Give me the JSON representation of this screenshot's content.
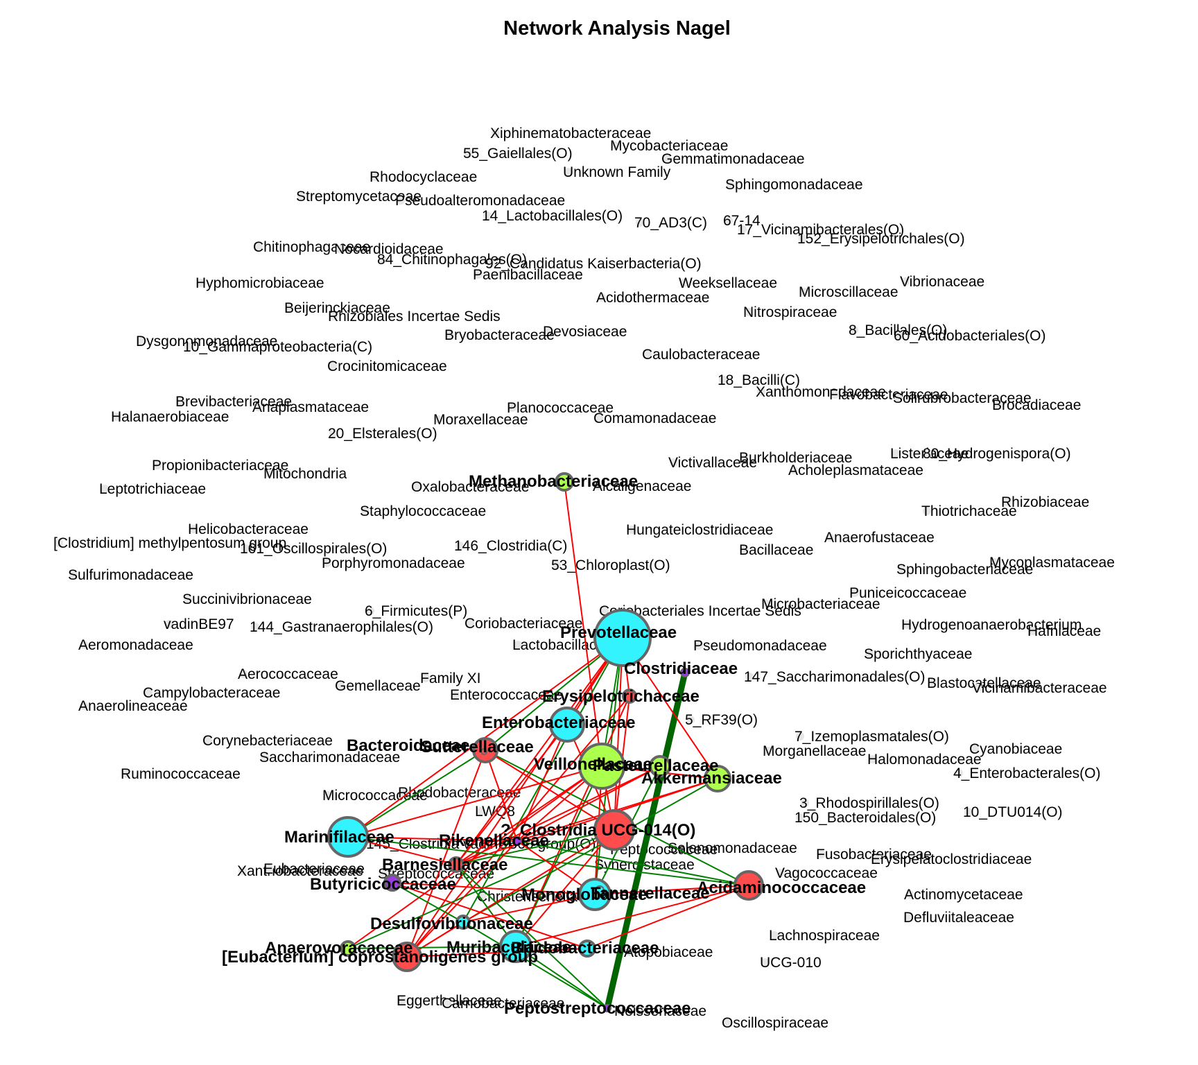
{
  "title": "Network Analysis Nagel",
  "colors": {
    "positive_edge": "#008000",
    "strong_positive_edge": "#006400",
    "negative_edge": "#ff0000",
    "isolated_node": "#e6e6e6",
    "cyan": "#33f3ff",
    "red": "#ff4d4d",
    "lime": "#adff4d",
    "purple": "#9a3ee0",
    "node_stroke": "#666666"
  },
  "hub_nodes": [
    {
      "id": "prev",
      "label": "Prevotellaceae",
      "color": "cyan"
    },
    {
      "id": "clost",
      "label": "Clostridiaceae",
      "color": "purple"
    },
    {
      "id": "erys",
      "label": "Erysipelotrichaceae",
      "color": "red"
    },
    {
      "id": "entero",
      "label": "Enterobacteriaceae",
      "color": "cyan"
    },
    {
      "id": "bact",
      "label": "Bacteroidaceae",
      "color": "red"
    },
    {
      "id": "sutt",
      "label": "Sutterellaceae",
      "color": "red"
    },
    {
      "id": "veil",
      "label": "Veillonellaceae",
      "color": "lime"
    },
    {
      "id": "pasteur",
      "label": "Pasteurellaceae",
      "color": "lime"
    },
    {
      "id": "akk",
      "label": "Akkermansiaceae",
      "color": "lime"
    },
    {
      "id": "methano",
      "label": "Methanobacteriaceae",
      "color": "lime"
    },
    {
      "id": "marini",
      "label": "Marinifilaceae",
      "color": "cyan"
    },
    {
      "id": "ucg014",
      "label": "?_Clostridia UCG-014(O)",
      "color": "red"
    },
    {
      "id": "riken",
      "label": "Rikenellaceae",
      "color": "purple"
    },
    {
      "id": "barn",
      "label": "Barnesiellaceae",
      "color": "red"
    },
    {
      "id": "butyr",
      "label": "Butyricicoccaceae",
      "color": "purple"
    },
    {
      "id": "monog",
      "label": "Monoglobaceae",
      "color": "cyan"
    },
    {
      "id": "tanner",
      "label": "Tannerellaceae",
      "color": "cyan"
    },
    {
      "id": "acida",
      "label": "Acidaminococcaceae",
      "color": "red"
    },
    {
      "id": "desulfo",
      "label": "Desulfovibrionaceae",
      "color": "cyan"
    },
    {
      "id": "anaerovo",
      "label": "Anaerovoracaceae",
      "color": "lime"
    },
    {
      "id": "eubcop",
      "label": "[Eubacterium] coprostanoligenes group",
      "color": "red"
    },
    {
      "id": "murib",
      "label": "Muribaculaceae",
      "color": "cyan"
    },
    {
      "id": "bifido",
      "label": "Bifidobacteriaceae",
      "color": "cyan"
    },
    {
      "id": "peptostrep",
      "label": "Peptostreptococcaceae",
      "color": "purple"
    }
  ],
  "edges": [
    {
      "from": "clost",
      "to": "peptostrep",
      "sign": "positive",
      "weight": "strong"
    },
    {
      "from": "methano",
      "to": "veil",
      "sign": "negative"
    },
    {
      "from": "prev",
      "to": "erys",
      "sign": "negative"
    },
    {
      "from": "prev",
      "to": "entero",
      "sign": "negative"
    },
    {
      "from": "prev",
      "to": "sutt",
      "sign": "positive"
    },
    {
      "from": "prev",
      "to": "veil",
      "sign": "positive"
    },
    {
      "from": "prev",
      "to": "ucg014",
      "sign": "negative"
    },
    {
      "from": "prev",
      "to": "akk",
      "sign": "negative"
    },
    {
      "from": "prev",
      "to": "marini",
      "sign": "negative"
    },
    {
      "from": "prev",
      "to": "barn",
      "sign": "negative"
    },
    {
      "from": "prev",
      "to": "desulfo",
      "sign": "positive"
    },
    {
      "from": "prev",
      "to": "monog",
      "sign": "positive"
    },
    {
      "from": "prev",
      "to": "eubcop",
      "sign": "negative"
    },
    {
      "from": "erys",
      "to": "ucg014",
      "sign": "negative"
    },
    {
      "from": "erys",
      "to": "murib",
      "sign": "negative"
    },
    {
      "from": "erys",
      "to": "eubcop",
      "sign": "negative"
    },
    {
      "from": "entero",
      "to": "riken",
      "sign": "negative"
    },
    {
      "from": "entero",
      "to": "barn",
      "sign": "negative"
    },
    {
      "from": "entero",
      "to": "ucg014",
      "sign": "negative"
    },
    {
      "from": "sutt",
      "to": "marini",
      "sign": "positive"
    },
    {
      "from": "sutt",
      "to": "acida",
      "sign": "positive"
    },
    {
      "from": "sutt",
      "to": "eubcop",
      "sign": "negative"
    },
    {
      "from": "sutt",
      "to": "riken",
      "sign": "negative"
    },
    {
      "from": "sutt",
      "to": "ucg014",
      "sign": "negative"
    },
    {
      "from": "veil",
      "to": "riken",
      "sign": "negative"
    },
    {
      "from": "veil",
      "to": "marini",
      "sign": "negative"
    },
    {
      "from": "veil",
      "to": "monog",
      "sign": "negative"
    },
    {
      "from": "veil",
      "to": "barn",
      "sign": "negative"
    },
    {
      "from": "veil",
      "to": "ucg014",
      "sign": "negative"
    },
    {
      "from": "veil",
      "to": "murib",
      "sign": "positive"
    },
    {
      "from": "veil",
      "to": "akk",
      "sign": "negative"
    },
    {
      "from": "veil",
      "to": "anaerovo",
      "sign": "negative"
    },
    {
      "from": "pasteur",
      "to": "barn",
      "sign": "negative"
    },
    {
      "from": "pasteur",
      "to": "riken",
      "sign": "negative"
    },
    {
      "from": "pasteur",
      "to": "monog",
      "sign": "positive"
    },
    {
      "from": "akk",
      "to": "barn",
      "sign": "negative"
    },
    {
      "from": "akk",
      "to": "riken",
      "sign": "negative"
    },
    {
      "from": "akk",
      "to": "desulfo",
      "sign": "positive"
    },
    {
      "from": "marini",
      "to": "acida",
      "sign": "positive"
    },
    {
      "from": "marini",
      "to": "barn",
      "sign": "negative"
    },
    {
      "from": "marini",
      "to": "riken",
      "sign": "negative"
    },
    {
      "from": "ucg014",
      "to": "eubcop",
      "sign": "negative"
    },
    {
      "from": "ucg014",
      "to": "murib",
      "sign": "negative"
    },
    {
      "from": "ucg014",
      "to": "barn",
      "sign": "positive"
    },
    {
      "from": "ucg014",
      "to": "anaerovo",
      "sign": "positive"
    },
    {
      "from": "riken",
      "to": "monog",
      "sign": "negative"
    },
    {
      "from": "riken",
      "to": "acida",
      "sign": "positive"
    },
    {
      "from": "riken",
      "to": "eubcop",
      "sign": "negative"
    },
    {
      "from": "barn",
      "to": "peptostrep",
      "sign": "positive"
    },
    {
      "from": "barn",
      "to": "murib",
      "sign": "positive"
    },
    {
      "from": "butyr",
      "to": "monog",
      "sign": "negative"
    },
    {
      "from": "butyr",
      "to": "bifido",
      "sign": "negative"
    },
    {
      "from": "butyr",
      "to": "desulfo",
      "sign": "positive"
    },
    {
      "from": "monog",
      "to": "acida",
      "sign": "negative"
    },
    {
      "from": "monog",
      "to": "desulfo",
      "sign": "negative"
    },
    {
      "from": "acida",
      "to": "murib",
      "sign": "negative"
    },
    {
      "from": "acida",
      "to": "bifido",
      "sign": "negative"
    },
    {
      "from": "desulfo",
      "to": "eubcop",
      "sign": "negative"
    },
    {
      "from": "desulfo",
      "to": "peptostrep",
      "sign": "positive"
    },
    {
      "from": "murib",
      "to": "peptostrep",
      "sign": "positive"
    },
    {
      "from": "eubcop",
      "to": "bifido",
      "sign": "negative"
    },
    {
      "from": "anaerovo",
      "to": "murib",
      "sign": "positive"
    }
  ],
  "isolated_nodes": [
    "Xiphinematobacteraceae",
    "Mycobacteriaceae",
    "55_Gaiellales(O)",
    "Gemmatimonadaceae",
    "Rhodocyclaceae",
    "Unknown Family",
    "Sphingomonadaceae",
    "Streptomycetaceae",
    "Pseudoalteromonadaceae",
    "14_Lactobacillales(O)",
    "70_AD3(C)",
    "67-14",
    "17_Vicinamibacterales(O)",
    "152_Erysipelotrichales(O)",
    "Chitinophagaceae",
    "Nocardioidaceae",
    "84_Chitinophagales(O)",
    "92_Candidatus Kaiserbacteria(O)",
    "Paenibacillaceae",
    "Hyphomicrobiaceae",
    "Weeksellaceae",
    "Vibrionaceae",
    "Microscillaceae",
    "Acidothermaceae",
    "Beijerinckiaceae",
    "Rhizobiales Incertae Sedis",
    "Nitrospiraceae",
    "Devosiaceae",
    "Bryobacteraceae",
    "8_Bacillales(O)",
    "60_Acidobacteriales(O)",
    "Dysgonomonadaceae",
    "10_Gammaproteobacteria(C)",
    "Caulobacteraceae",
    "Crocinitomicaceae",
    "18_Bacilli(C)",
    "Xanthomonadaceae",
    "Flavobacteriaceae",
    "Solirubrobacteraceae",
    "Brocadiaceae",
    "Brevibacteriaceae",
    "Anaplasmataceae",
    "Planococcaceae",
    "Halanaerobiaceae",
    "Moraxellaceae",
    "Comamonadaceae",
    "20_Elsterales(O)",
    "Burkholderiaceae",
    "Listeriaceae",
    "80_Hydrogenispora(O)",
    "Victivallaceae",
    "Acholeplasmataceae",
    "Propionibacteriaceae",
    "Mitochondria",
    "Leptotrichiaceae",
    "Oxalobacteraceae",
    "Alcaligenaceae",
    "Rhizobiaceae",
    "Thiotrichaceae",
    "Staphylococcaceae",
    "Helicobacteraceae",
    "Hungateiclostridiaceae",
    "Anaerofustaceae",
    "[Clostridium] methylpentosum group",
    "146_Clostridia(C)",
    "161_Oscillospirales(O)",
    "Bacillaceae",
    "Mycoplasmataceae",
    "Porphyromonadaceae",
    "53_Chloroplast(O)",
    "Sphingobacteriaceae",
    "Sulfurimonadaceae",
    "Puniceicoccaceae",
    "Succinivibrionaceae",
    "Microbacteriaceae",
    "6_Firmicutes(P)",
    "Coriobacteriales Incertae Sedis",
    "Hydrogenoanaerobacterium",
    "vadinBE97",
    "Coriobacteriaceae",
    "144_Gastranaerophilales(O)",
    "Hafniaceae",
    "Aeromonadaceae",
    "Pseudomonadaceae",
    "Lactobacillaceae",
    "Sporichthyaceae",
    "Aerococcaceae",
    "Family XI",
    "147_Saccharimonadales(O)",
    "Gemellaceae",
    "Blastocatellaceae",
    "Vicinamibacteraceae",
    "Campylobacteraceae",
    "Enterococcaceae",
    "Anaerolineaceae",
    "5_RF39(O)",
    "Corynebacteriaceae",
    "7_Izemoplasmatales(O)",
    "Saccharimonadaceae",
    "Morganellaceae",
    "Cyanobiaceae",
    "Halomonadaceae",
    "4_Enterobacterales(O)",
    "Micrococcaceae",
    "3_Rhodospirillales(O)",
    "150_Bacteroidales(O)",
    "10_DTU014(O)",
    "Ruminococcaceae",
    "Selenomonadaceae",
    "Fusobacteriaceae",
    "Rhodobacteraceae",
    "LWQ8",
    "145_Clostridia vadinBB60 group(O)",
    "Peptococcaceae",
    "Erysipelatoclostridiaceae",
    "Synergistaceae",
    "Vagococcaceae",
    "Actinomycetaceae",
    "Streptococcaceae",
    "Xanthobacteraceae",
    "Christensenellaceae",
    "Defluviitaleaceae",
    "Lachnospiraceae",
    "Eubacteriaceae",
    "UCG-010",
    "Atopobiaceae",
    "Eggerthellaceae",
    "Carnobacteriaceae",
    "Neisseriaceae",
    "Oscillospiraceae"
  ]
}
